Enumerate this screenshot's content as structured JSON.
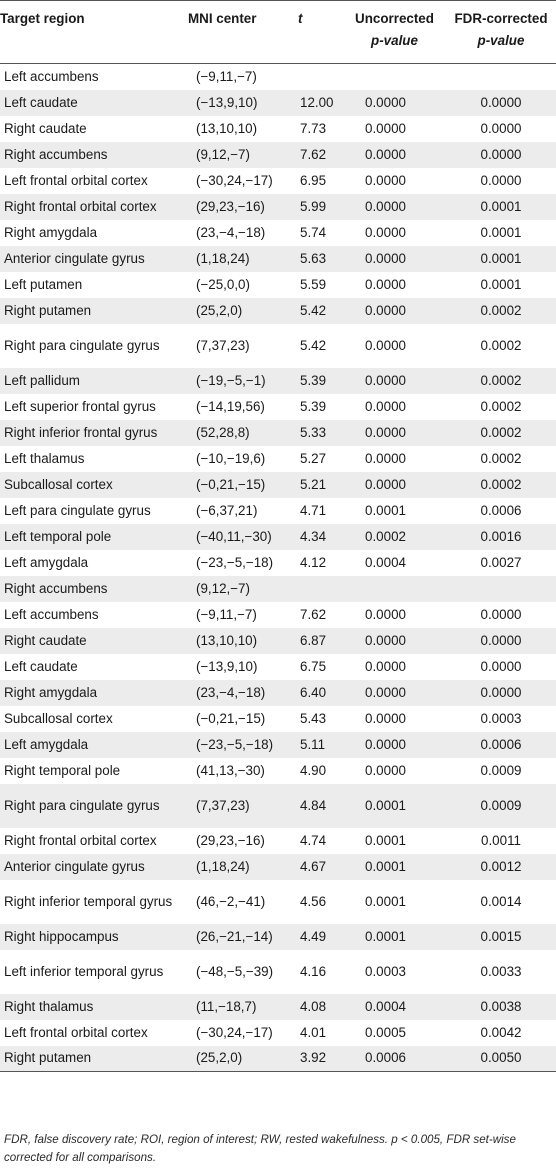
{
  "headers": {
    "region": "Target region",
    "mni": "MNI center",
    "t": "t",
    "unc_line1": "Uncorrected",
    "unc_line2": "p-value",
    "fdr_line1": "FDR-corrected",
    "fdr_line2": "p-value"
  },
  "rows": [
    {
      "region": "Left accumbens",
      "mni": "(−9,11,−7)",
      "t": "",
      "unc": "",
      "fdr": ""
    },
    {
      "region": "Left caudate",
      "mni": "(−13,9,10)",
      "t": "12.00",
      "unc": "0.0000",
      "fdr": "0.0000"
    },
    {
      "region": "Right caudate",
      "mni": "(13,10,10)",
      "t": "7.73",
      "unc": "0.0000",
      "fdr": "0.0000"
    },
    {
      "region": "Right accumbens",
      "mni": "(9,12,−7)",
      "t": "7.62",
      "unc": "0.0000",
      "fdr": "0.0000"
    },
    {
      "region": "Left frontal orbital cortex",
      "mni": "(−30,24,−17)",
      "t": "6.95",
      "unc": "0.0000",
      "fdr": "0.0000"
    },
    {
      "region": "Right frontal orbital cortex",
      "mni": "(29,23,−16)",
      "t": "5.99",
      "unc": "0.0000",
      "fdr": "0.0001"
    },
    {
      "region": "Right amygdala",
      "mni": "(23,−4,−18)",
      "t": "5.74",
      "unc": "0.0000",
      "fdr": "0.0001"
    },
    {
      "region": "Anterior cingulate gyrus",
      "mni": "(1,18,24)",
      "t": "5.63",
      "unc": "0.0000",
      "fdr": "0.0001"
    },
    {
      "region": "Left putamen",
      "mni": "(−25,0,0)",
      "t": "5.59",
      "unc": "0.0000",
      "fdr": "0.0001"
    },
    {
      "region": "Right putamen",
      "mni": "(25,2,0)",
      "t": "5.42",
      "unc": "0.0000",
      "fdr": "0.0002"
    },
    {
      "region": "Right para cingulate gyrus",
      "mni": "(7,37,23)",
      "t": "5.42",
      "unc": "0.0000",
      "fdr": "0.0002"
    },
    {
      "region": "Left pallidum",
      "mni": "(−19,−5,−1)",
      "t": "5.39",
      "unc": "0.0000",
      "fdr": "0.0002"
    },
    {
      "region": "Left superior frontal gyrus",
      "mni": "(−14,19,56)",
      "t": "5.39",
      "unc": "0.0000",
      "fdr": "0.0002"
    },
    {
      "region": "Right inferior frontal gyrus",
      "mni": "(52,28,8)",
      "t": "5.33",
      "unc": "0.0000",
      "fdr": "0.0002"
    },
    {
      "region": "Left thalamus",
      "mni": "(−10,−19,6)",
      "t": "5.27",
      "unc": "0.0000",
      "fdr": "0.0002"
    },
    {
      "region": "Subcallosal cortex",
      "mni": "(−0,21,−15)",
      "t": "5.21",
      "unc": "0.0000",
      "fdr": "0.0002"
    },
    {
      "region": "Left para cingulate gyrus",
      "mni": "(−6,37,21)",
      "t": "4.71",
      "unc": "0.0001",
      "fdr": "0.0006"
    },
    {
      "region": "Left temporal pole",
      "mni": "(−40,11,−30)",
      "t": "4.34",
      "unc": "0.0002",
      "fdr": "0.0016"
    },
    {
      "region": "Left amygdala",
      "mni": "(−23,−5,−18)",
      "t": "4.12",
      "unc": "0.0004",
      "fdr": "0.0027"
    },
    {
      "region": "Right accumbens",
      "mni": "(9,12,−7)",
      "t": "",
      "unc": "",
      "fdr": ""
    },
    {
      "region": "Left accumbens",
      "mni": "(−9,11,−7)",
      "t": "7.62",
      "unc": "0.0000",
      "fdr": "0.0000"
    },
    {
      "region": "Right caudate",
      "mni": "(13,10,10)",
      "t": "6.87",
      "unc": "0.0000",
      "fdr": "0.0000"
    },
    {
      "region": "Left caudate",
      "mni": "(−13,9,10)",
      "t": "6.75",
      "unc": "0.0000",
      "fdr": "0.0000"
    },
    {
      "region": "Right amygdala",
      "mni": "(23,−4,−18)",
      "t": "6.40",
      "unc": "0.0000",
      "fdr": "0.0000"
    },
    {
      "region": "Subcallosal cortex",
      "mni": "(−0,21,−15)",
      "t": "5.43",
      "unc": "0.0000",
      "fdr": "0.0003"
    },
    {
      "region": "Left amygdala",
      "mni": "(−23,−5,−18)",
      "t": "5.11",
      "unc": "0.0000",
      "fdr": "0.0006"
    },
    {
      "region": "Right temporal pole",
      "mni": "(41,13,−30)",
      "t": "4.90",
      "unc": "0.0000",
      "fdr": "0.0009"
    },
    {
      "region": "Right para cingulate gyrus",
      "mni": "(7,37,23)",
      "t": "4.84",
      "unc": "0.0001",
      "fdr": "0.0009"
    },
    {
      "region": "Right frontal orbital cortex",
      "mni": "(29,23,−16)",
      "t": "4.74",
      "unc": "0.0001",
      "fdr": "0.0011"
    },
    {
      "region": "Anterior cingulate gyrus",
      "mni": "(1,18,24)",
      "t": "4.67",
      "unc": "0.0001",
      "fdr": "0.0012"
    },
    {
      "region": "Right inferior temporal gyrus",
      "mni": "(46,−2,−41)",
      "t": "4.56",
      "unc": "0.0001",
      "fdr": "0.0014"
    },
    {
      "region": "Right hippocampus",
      "mni": "(26,−21,−14)",
      "t": "4.49",
      "unc": "0.0001",
      "fdr": "0.0015"
    },
    {
      "region": "Left inferior temporal gyrus",
      "mni": "(−48,−5,−39)",
      "t": "4.16",
      "unc": "0.0003",
      "fdr": "0.0033"
    },
    {
      "region": "Right thalamus",
      "mni": "(11,−18,7)",
      "t": "4.08",
      "unc": "0.0004",
      "fdr": "0.0038"
    },
    {
      "region": "Left frontal orbital cortex",
      "mni": "(−30,24,−17)",
      "t": "4.01",
      "unc": "0.0005",
      "fdr": "0.0042"
    },
    {
      "region": "Right putamen",
      "mni": "(25,2,0)",
      "t": "3.92",
      "unc": "0.0006",
      "fdr": "0.0050"
    }
  ],
  "footnote": "FDR, false discovery rate; ROI, region of interest; RW, rested wakefulness. p < 0.005, FDR set-wise corrected for all comparisons."
}
